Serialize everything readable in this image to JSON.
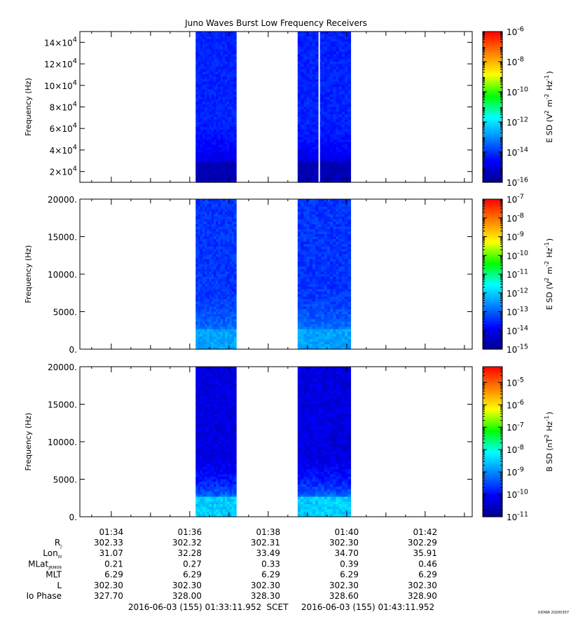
{
  "title": "Juno Waves Burst Low Frequency Receivers",
  "watermark": "UIOWA 20200307",
  "colors": {
    "frame": "#000000",
    "background": "#ffffff",
    "colormap": [
      "#00008b",
      "#0000ff",
      "#0080ff",
      "#00ffff",
      "#00ff00",
      "#ffff00",
      "#ff8000",
      "#ff0000"
    ]
  },
  "chart_data": [
    {
      "type": "heatmap",
      "panel": "top",
      "ylabel": "Frequency (Hz)",
      "ylim": [
        10000,
        150000
      ],
      "y_tick_labels": [
        "2×10^4",
        "4×10^4",
        "6×10^4",
        "8×10^4",
        "10×10^4",
        "12×10^4",
        "14×10^4"
      ],
      "y_ticks": [
        20000,
        40000,
        60000,
        80000,
        100000,
        120000,
        140000
      ],
      "colorbar_label": "E SD (V^2 m^-2 Hz^-1)",
      "colorbar_scale": "log",
      "colorbar_range": [
        -16,
        -6
      ],
      "colorbar_tick_labels": [
        "10^-16",
        "10^-14",
        "10^-12",
        "10^-10",
        "10^-8",
        "10^-6"
      ],
      "data_blocks": [
        {
          "start": "01:36:09",
          "end": "01:37:11",
          "base_level": -14.2,
          "low_band_level": -15.5
        },
        {
          "start": "01:38:45",
          "end": "01:40:06",
          "base_level": -14.2,
          "low_band_level": -15.5,
          "gap_at": "01:39:18"
        }
      ]
    },
    {
      "type": "heatmap",
      "panel": "middle",
      "ylabel": "Frequency (Hz)",
      "ylim": [
        0,
        20000
      ],
      "y_tick_labels": [
        "0.",
        "5000.",
        "10000.",
        "15000.",
        "20000."
      ],
      "y_ticks": [
        0,
        5000,
        10000,
        15000,
        20000
      ],
      "colorbar_label": "E SD (V^2 m^-2 Hz^-1)",
      "colorbar_scale": "log",
      "colorbar_range": [
        -15,
        -7
      ],
      "colorbar_tick_labels": [
        "10^-15",
        "10^-14",
        "10^-13",
        "10^-12",
        "10^-11",
        "10^-10",
        "10^-9",
        "10^-8",
        "10^-7"
      ],
      "data_blocks": [
        {
          "start": "01:36:09",
          "end": "01:37:11",
          "base_level": -13.4,
          "low_band_level": -12.4
        },
        {
          "start": "01:38:45",
          "end": "01:40:06",
          "base_level": -13.4,
          "low_band_level": -12.4
        }
      ]
    },
    {
      "type": "heatmap",
      "panel": "bottom",
      "ylabel": "Frequency (Hz)",
      "ylim": [
        0,
        20000
      ],
      "y_tick_labels": [
        "0.",
        "5000.",
        "10000.",
        "15000.",
        "20000."
      ],
      "y_ticks": [
        0,
        5000,
        10000,
        15000,
        20000
      ],
      "colorbar_label": "B SD (nT^2 Hz^-1)",
      "colorbar_scale": "log",
      "colorbar_range": [
        -11,
        -4.3
      ],
      "colorbar_tick_labels": [
        "10^-11",
        "10^-10",
        "10^-9",
        "10^-8",
        "10^-7",
        "10^-6",
        "10^-5"
      ],
      "data_blocks": [
        {
          "start": "01:36:09",
          "end": "01:37:11",
          "base_level": -10.3,
          "low_band_level": -8.5
        },
        {
          "start": "01:38:45",
          "end": "01:40:06",
          "base_level": -10.3,
          "low_band_level": -8.5
        }
      ]
    }
  ],
  "time_axis": {
    "start": "01:33:11.952",
    "end": "01:43:11.952",
    "major_ticks": [
      "01:34",
      "01:36",
      "01:38",
      "01:40",
      "01:42"
    ]
  },
  "ephemeris": {
    "rows": [
      {
        "label": "R",
        "sub": "J",
        "values": [
          "302.33",
          "302.32",
          "302.31",
          "302.30",
          "302.29"
        ]
      },
      {
        "label": "Lon",
        "sub": "III",
        "values": [
          "31.07",
          "32.28",
          "33.49",
          "34.70",
          "35.91"
        ]
      },
      {
        "label": "MLat",
        "sub": "JRM09",
        "values": [
          "0.21",
          "0.27",
          "0.33",
          "0.39",
          "0.46"
        ]
      },
      {
        "label": "MLT",
        "sub": "",
        "values": [
          "6.29",
          "6.29",
          "6.29",
          "6.29",
          "6.29"
        ]
      },
      {
        "label": "L",
        "sub": "",
        "values": [
          "302.30",
          "302.30",
          "302.30",
          "302.30",
          "302.30"
        ]
      },
      {
        "label": "Io Phase",
        "sub": "",
        "values": [
          "327.70",
          "328.00",
          "328.30",
          "328.60",
          "328.90"
        ]
      }
    ]
  },
  "footer": {
    "start": "2016-06-03 (155) 01:33:11.952",
    "frame": "SCET",
    "end": "2016-06-03 (155) 01:43:11.952"
  }
}
